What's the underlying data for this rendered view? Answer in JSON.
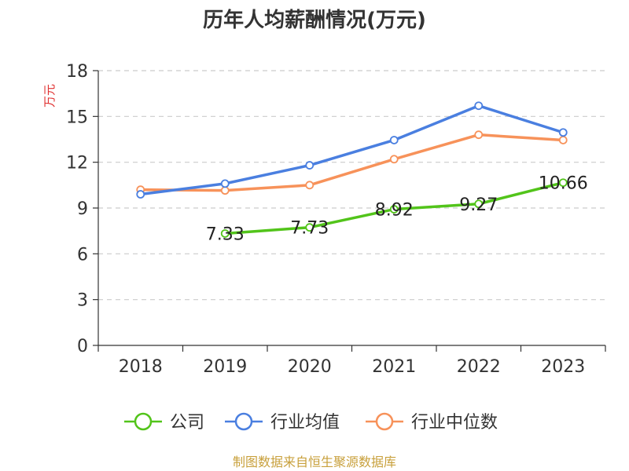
{
  "chart_data": {
    "type": "line",
    "title": "历年人均薪酬情况(万元)",
    "ylabel": "万元",
    "xlabel": "",
    "ylim": [
      0,
      18
    ],
    "yticks": [
      0,
      3,
      6,
      9,
      12,
      15,
      18
    ],
    "categories": [
      "2018",
      "2019",
      "2020",
      "2021",
      "2022",
      "2023"
    ],
    "grid": true,
    "legend_position": "bottom",
    "series": [
      {
        "name": "公司",
        "color": "#52c41a",
        "show_labels": true,
        "values": [
          null,
          7.33,
          7.73,
          8.92,
          9.27,
          10.66
        ],
        "labels": [
          "",
          "7.33",
          "7.73",
          "8.92",
          "9.27",
          "10.66"
        ]
      },
      {
        "name": "行业均值",
        "color": "#4a7fe0",
        "show_labels": false,
        "values": [
          9.9,
          10.6,
          11.8,
          13.45,
          15.7,
          13.95
        ]
      },
      {
        "name": "行业中位数",
        "color": "#f7925a",
        "show_labels": false,
        "values": [
          10.2,
          10.15,
          10.5,
          12.2,
          13.8,
          13.45
        ]
      }
    ],
    "ylabel_color": "#e03030"
  },
  "source_text": "制图数据来自恒生聚源数据库",
  "source_color": "#c8a03c"
}
